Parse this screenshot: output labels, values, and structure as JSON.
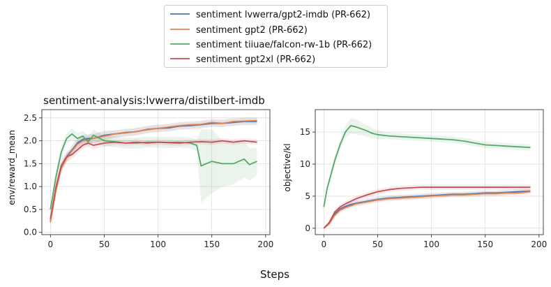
{
  "figure": {
    "xlabel": "Steps",
    "colors": {
      "lvwerra_gpt2_imdb": "#4c72b0",
      "gpt2": "#dd8452",
      "falcon": "#55a868",
      "gpt2xl": "#c44e52"
    }
  },
  "legend": {
    "placement": "top-center",
    "entries": [
      "sentiment lvwerra/gpt2-imdb (PR-662)",
      "sentiment gpt2 (PR-662)",
      "sentiment tiiuae/falcon-rw-1b (PR-662)",
      "sentiment gpt2xl (PR-662)"
    ]
  },
  "chart_data": [
    {
      "type": "line",
      "title": "sentiment-analysis:lvwerra/distilbert-imdb",
      "xlabel": "",
      "ylabel": "env/reward_mean",
      "xlim": [
        -8,
        204
      ],
      "ylim": [
        -0.05,
        2.68
      ],
      "xticks": [
        0,
        50,
        100,
        150,
        200
      ],
      "yticks": [
        0.0,
        0.5,
        1.0,
        1.5,
        2.0,
        2.5
      ],
      "ytick_labels": [
        "0.0",
        "0.5",
        "1.0",
        "1.5",
        "2.0",
        "2.5"
      ],
      "grid": true,
      "series": [
        {
          "name": "sentiment lvwerra/gpt2-imdb (PR-662)",
          "color_key": "lvwerra_gpt2_imdb",
          "x": [
            0,
            5,
            10,
            15,
            20,
            25,
            30,
            35,
            40,
            50,
            60,
            70,
            80,
            90,
            100,
            110,
            120,
            130,
            140,
            150,
            160,
            170,
            180,
            192
          ],
          "y": [
            0.25,
            0.95,
            1.45,
            1.65,
            1.8,
            1.95,
            2.03,
            2.05,
            2.05,
            2.12,
            2.15,
            2.18,
            2.2,
            2.25,
            2.27,
            2.28,
            2.32,
            2.33,
            2.35,
            2.38,
            2.38,
            2.4,
            2.42,
            2.42
          ],
          "band": [
            0.08,
            0.1,
            0.1,
            0.1,
            0.1,
            0.1,
            0.1,
            0.1,
            0.1,
            0.1,
            0.08,
            0.08,
            0.08,
            0.08,
            0.08,
            0.08,
            0.08,
            0.08,
            0.08,
            0.08,
            0.08,
            0.08,
            0.08,
            0.08
          ]
        },
        {
          "name": "sentiment gpt2 (PR-662)",
          "color_key": "gpt2",
          "x": [
            0,
            5,
            10,
            15,
            20,
            25,
            30,
            35,
            40,
            50,
            60,
            70,
            80,
            90,
            100,
            110,
            120,
            130,
            140,
            150,
            160,
            170,
            180,
            192
          ],
          "y": [
            0.22,
            0.9,
            1.4,
            1.62,
            1.78,
            1.92,
            2.0,
            2.02,
            2.05,
            2.1,
            2.15,
            2.17,
            2.2,
            2.24,
            2.27,
            2.3,
            2.33,
            2.35,
            2.36,
            2.4,
            2.38,
            2.42,
            2.43,
            2.44
          ],
          "band": [
            0.08,
            0.1,
            0.1,
            0.1,
            0.1,
            0.1,
            0.1,
            0.1,
            0.1,
            0.1,
            0.08,
            0.08,
            0.08,
            0.08,
            0.08,
            0.08,
            0.08,
            0.08,
            0.08,
            0.08,
            0.08,
            0.08,
            0.08,
            0.08
          ]
        },
        {
          "name": "sentiment tiiuae/falcon-rw-1b (PR-662)",
          "color_key": "falcon",
          "x": [
            0,
            5,
            10,
            15,
            20,
            25,
            30,
            35,
            40,
            50,
            60,
            70,
            80,
            90,
            100,
            110,
            120,
            130,
            136,
            140,
            150,
            160,
            170,
            180,
            185,
            192
          ],
          "y": [
            0.5,
            1.2,
            1.75,
            2.05,
            2.15,
            2.05,
            2.1,
            1.98,
            2.12,
            2.0,
            1.98,
            1.95,
            1.95,
            1.97,
            1.97,
            1.96,
            1.97,
            1.95,
            1.9,
            1.45,
            1.55,
            1.5,
            1.5,
            1.6,
            1.48,
            1.55
          ],
          "band": [
            0.08,
            0.15,
            0.15,
            0.12,
            0.12,
            0.12,
            0.12,
            0.12,
            0.12,
            0.12,
            0.12,
            0.12,
            0.12,
            0.12,
            0.12,
            0.12,
            0.12,
            0.12,
            0.12,
            0.8,
            0.7,
            0.5,
            0.45,
            0.4,
            0.35,
            0.3
          ]
        },
        {
          "name": "sentiment gpt2xl (PR-662)",
          "color_key": "gpt2xl",
          "x": [
            0,
            5,
            10,
            15,
            20,
            25,
            30,
            35,
            40,
            50,
            60,
            70,
            80,
            90,
            100,
            110,
            120,
            130,
            140,
            150,
            160,
            170,
            180,
            192
          ],
          "y": [
            0.3,
            0.98,
            1.45,
            1.65,
            1.7,
            1.8,
            1.9,
            1.95,
            1.9,
            1.95,
            1.97,
            1.95,
            1.97,
            1.95,
            1.97,
            1.96,
            1.95,
            1.97,
            1.98,
            1.97,
            2.0,
            1.97,
            2.0,
            1.97
          ],
          "band": [
            0.08,
            0.12,
            0.12,
            0.1,
            0.1,
            0.08,
            0.08,
            0.08,
            0.08,
            0.08,
            0.06,
            0.06,
            0.06,
            0.06,
            0.06,
            0.06,
            0.06,
            0.06,
            0.06,
            0.06,
            0.06,
            0.06,
            0.06,
            0.06
          ]
        }
      ]
    },
    {
      "type": "line",
      "title": "",
      "xlabel": "",
      "ylabel": "objective/kl",
      "xlim": [
        -8,
        204
      ],
      "ylim": [
        -1,
        18.5
      ],
      "xticks": [
        0,
        50,
        100,
        150,
        200
      ],
      "yticks": [
        0,
        5,
        10,
        15
      ],
      "ytick_labels": [
        "0",
        "5",
        "10",
        "15"
      ],
      "grid": true,
      "series": [
        {
          "name": "sentiment lvwerra/gpt2-imdb (PR-662)",
          "color_key": "lvwerra_gpt2_imdb",
          "x": [
            0,
            5,
            10,
            15,
            20,
            25,
            30,
            40,
            50,
            60,
            70,
            80,
            90,
            100,
            110,
            120,
            130,
            140,
            150,
            160,
            170,
            180,
            192
          ],
          "y": [
            0,
            0.8,
            2.2,
            3.0,
            3.4,
            3.7,
            3.9,
            4.2,
            4.5,
            4.7,
            4.8,
            4.9,
            5.0,
            5.1,
            5.2,
            5.3,
            5.3,
            5.4,
            5.5,
            5.5,
            5.6,
            5.7,
            5.8
          ],
          "band": [
            0.1,
            0.3,
            0.4,
            0.4,
            0.4,
            0.4,
            0.4,
            0.4,
            0.4,
            0.4,
            0.4,
            0.4,
            0.4,
            0.4,
            0.4,
            0.4,
            0.4,
            0.4,
            0.4,
            0.4,
            0.4,
            0.4,
            0.4
          ]
        },
        {
          "name": "sentiment gpt2 (PR-662)",
          "color_key": "gpt2",
          "x": [
            0,
            5,
            10,
            15,
            20,
            25,
            30,
            40,
            50,
            60,
            70,
            80,
            90,
            100,
            110,
            120,
            130,
            140,
            150,
            160,
            170,
            180,
            192
          ],
          "y": [
            0,
            0.7,
            2.0,
            2.8,
            3.2,
            3.5,
            3.8,
            4.1,
            4.4,
            4.6,
            4.7,
            4.8,
            4.9,
            5.0,
            5.1,
            5.2,
            5.2,
            5.3,
            5.4,
            5.4,
            5.5,
            5.5,
            5.7
          ],
          "band": [
            0.1,
            0.3,
            0.4,
            0.4,
            0.4,
            0.4,
            0.4,
            0.4,
            0.4,
            0.4,
            0.4,
            0.4,
            0.4,
            0.4,
            0.4,
            0.4,
            0.4,
            0.4,
            0.4,
            0.4,
            0.4,
            0.4,
            0.4
          ]
        },
        {
          "name": "sentiment tiiuae/falcon-rw-1b (PR-662)",
          "color_key": "falcon",
          "x": [
            0,
            3,
            6,
            10,
            15,
            20,
            25,
            30,
            35,
            40,
            45,
            50,
            60,
            70,
            80,
            90,
            100,
            110,
            120,
            130,
            140,
            150,
            160,
            170,
            180,
            192
          ],
          "y": [
            3.3,
            6.2,
            8.0,
            10.5,
            13.0,
            15.0,
            16.0,
            15.8,
            15.5,
            15.2,
            14.8,
            14.6,
            14.4,
            14.3,
            14.2,
            14.1,
            14.0,
            13.9,
            13.8,
            13.6,
            13.3,
            13.0,
            12.9,
            12.8,
            12.7,
            12.6
          ],
          "band": [
            0.3,
            0.5,
            0.6,
            0.8,
            0.8,
            0.9,
            1.2,
            1.2,
            1.0,
            0.9,
            0.8,
            0.7,
            0.5,
            0.5,
            0.5,
            0.5,
            0.5,
            0.5,
            0.5,
            0.5,
            0.5,
            0.5,
            0.5,
            0.5,
            0.5,
            0.5
          ]
        },
        {
          "name": "sentiment gpt2xl (PR-662)",
          "color_key": "gpt2xl",
          "x": [
            0,
            5,
            10,
            15,
            20,
            25,
            30,
            40,
            50,
            60,
            70,
            80,
            90,
            100,
            110,
            120,
            130,
            140,
            150,
            160,
            170,
            180,
            192
          ],
          "y": [
            0,
            0.9,
            2.5,
            3.3,
            3.8,
            4.2,
            4.6,
            5.2,
            5.7,
            6.0,
            6.2,
            6.3,
            6.4,
            6.4,
            6.4,
            6.4,
            6.4,
            6.4,
            6.4,
            6.4,
            6.4,
            6.4,
            6.4
          ],
          "band": [
            0.1,
            0.3,
            0.4,
            0.4,
            0.4,
            0.4,
            0.4,
            0.4,
            0.4,
            0.4,
            0.4,
            0.4,
            0.4,
            0.4,
            0.4,
            0.4,
            0.4,
            0.4,
            0.4,
            0.4,
            0.4,
            0.4,
            0.4
          ]
        }
      ]
    }
  ]
}
